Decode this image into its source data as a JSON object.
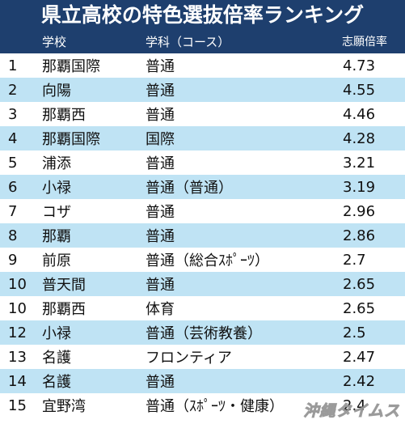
{
  "title": "県立高校の特色選抜倍率ランキング",
  "header": {
    "school": "学校",
    "course": "学科（コース）",
    "ratio": "志願倍率"
  },
  "rows": [
    {
      "rank": "1",
      "school": "那覇国際",
      "course": "普通",
      "ratio": "4.73"
    },
    {
      "rank": "2",
      "school": "向陽",
      "course": "普通",
      "ratio": "4.55"
    },
    {
      "rank": "3",
      "school": "那覇西",
      "course": "普通",
      "ratio": "4.46"
    },
    {
      "rank": "4",
      "school": "那覇国際",
      "course": "国際",
      "ratio": "4.28"
    },
    {
      "rank": "5",
      "school": "浦添",
      "course": "普通",
      "ratio": "3.21"
    },
    {
      "rank": "6",
      "school": "小禄",
      "course": "普通（普通）",
      "ratio": "3.19"
    },
    {
      "rank": "7",
      "school": "コザ",
      "course": "普通",
      "ratio": "2.96"
    },
    {
      "rank": "8",
      "school": "那覇",
      "course": "普通",
      "ratio": "2.86"
    },
    {
      "rank": "9",
      "school": "前原",
      "course": "普通（総合ｽﾎﾟｰﾂ）",
      "ratio": "2.7"
    },
    {
      "rank": "10",
      "school": "普天間",
      "course": "普通",
      "ratio": "2.65"
    },
    {
      "rank": "10",
      "school": "那覇西",
      "course": "体育",
      "ratio": "2.65"
    },
    {
      "rank": "12",
      "school": "小禄",
      "course": "普通（芸術教養）",
      "ratio": "2.5"
    },
    {
      "rank": "13",
      "school": "名護",
      "course": "フロンティア",
      "ratio": "2.47"
    },
    {
      "rank": "14",
      "school": "名護",
      "course": "普通",
      "ratio": "2.42"
    },
    {
      "rank": "15",
      "school": "宜野湾",
      "course": "普通（ｽﾎﾟｰﾂ・健康）",
      "ratio": "2.4"
    }
  ],
  "watermark": "沖縄タイムス"
}
